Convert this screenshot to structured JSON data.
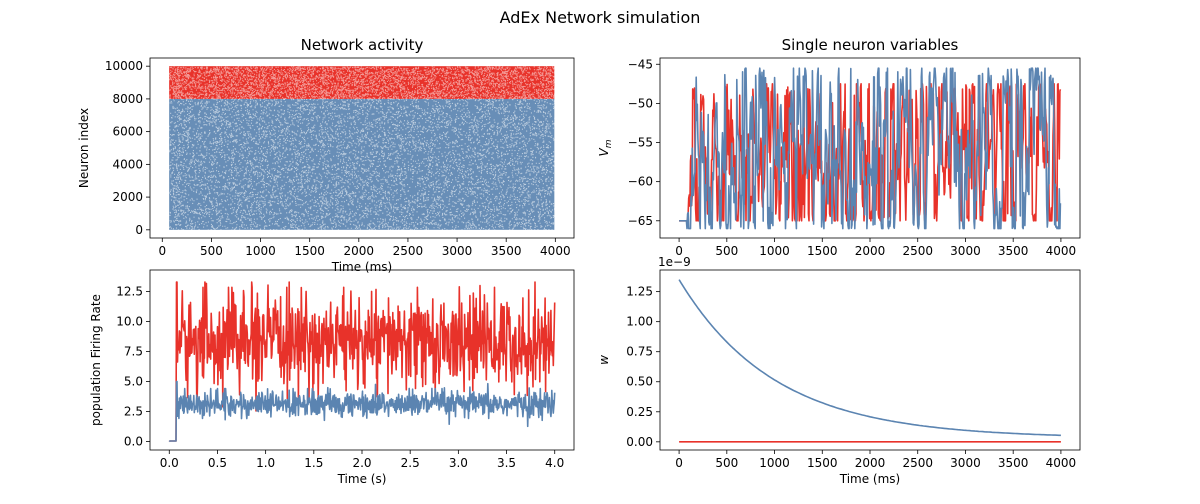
{
  "figure_title": "AdEx Network simulation",
  "colors": {
    "excitatory": "#5b84b1",
    "inhibitory": "#e8322a"
  },
  "chart_data": [
    {
      "id": "raster",
      "type": "scatter",
      "title": "Network activity",
      "xlabel": "Time (ms)",
      "ylabel": "Neuron index",
      "xlim": [
        -125,
        4190
      ],
      "ylim": [
        -500,
        10500
      ],
      "xticks": [
        0,
        500,
        1000,
        1500,
        2000,
        2500,
        3000,
        3500,
        4000
      ],
      "yticks": [
        0,
        2000,
        4000,
        6000,
        8000,
        10000
      ],
      "series": [
        {
          "color": "#5b84b1",
          "x_range": [
            70,
            3990
          ],
          "index_range": [
            0,
            8000
          ]
        },
        {
          "color": "#e8322a",
          "x_range": [
            70,
            3990
          ],
          "index_range": [
            8000,
            10000
          ]
        }
      ]
    },
    {
      "id": "vm",
      "type": "line",
      "title": "Single neuron variables",
      "xlabel": "",
      "ylabel": "V_m",
      "xlim": [
        -200,
        4200
      ],
      "ylim": [
        -67.2,
        -44.2
      ],
      "xticks": [
        0,
        500,
        1000,
        1500,
        2000,
        2500,
        3000,
        3500,
        4000
      ],
      "yticks": [
        -65,
        -60,
        -55,
        -50,
        -45
      ],
      "series": [
        {
          "color": "#e8322a",
          "y_range": [
            -65,
            -47.5
          ],
          "start_value": -65
        },
        {
          "color": "#5b84b1",
          "y_range": [
            -66,
            -45.5
          ],
          "start_value": -65
        }
      ]
    },
    {
      "id": "rate",
      "type": "line",
      "title": "",
      "xlabel": "Time (s)",
      "ylabel": "population Firing Rate",
      "xlim": [
        -0.2,
        4.2
      ],
      "ylim": [
        -0.7,
        14.3
      ],
      "xticks": [
        0.0,
        0.5,
        1.0,
        1.5,
        2.0,
        2.5,
        3.0,
        3.5,
        4.0
      ],
      "xtick_labels": [
        "0.0",
        "0.5",
        "1.0",
        "1.5",
        "2.0",
        "2.5",
        "3.0",
        "3.5",
        "4.0"
      ],
      "yticks": [
        0.0,
        2.5,
        5.0,
        7.5,
        10.0,
        12.5
      ],
      "ytick_labels": [
        "0.0",
        "2.5",
        "5.0",
        "7.5",
        "10.0",
        "12.5"
      ],
      "series": [
        {
          "color": "#e8322a",
          "onset": 0.07,
          "mean": 8.3,
          "spread": 1.9,
          "peak": 13.3
        },
        {
          "color": "#5b84b1",
          "onset": 0.07,
          "mean": 3.1,
          "spread": 0.55,
          "peak": 5.0
        }
      ]
    },
    {
      "id": "w",
      "type": "line",
      "title": "",
      "xlabel": "Time (ms)",
      "ylabel": "w",
      "offset_text": "1e−9",
      "xlim": [
        -200,
        4200
      ],
      "ylim": [
        -0.068,
        1.43
      ],
      "xticks": [
        0,
        500,
        1000,
        1500,
        2000,
        2500,
        3000,
        3500,
        4000
      ],
      "yticks": [
        0.0,
        0.25,
        0.5,
        0.75,
        1.0,
        1.25
      ],
      "ytick_labels": [
        "0.00",
        "0.25",
        "0.50",
        "0.75",
        "1.00",
        "1.25"
      ],
      "series": [
        {
          "color": "#5b84b1",
          "start": 1.35,
          "end": 0.03,
          "tau_ms": 1000
        },
        {
          "color": "#e8322a",
          "constant": 0.0
        }
      ]
    }
  ]
}
